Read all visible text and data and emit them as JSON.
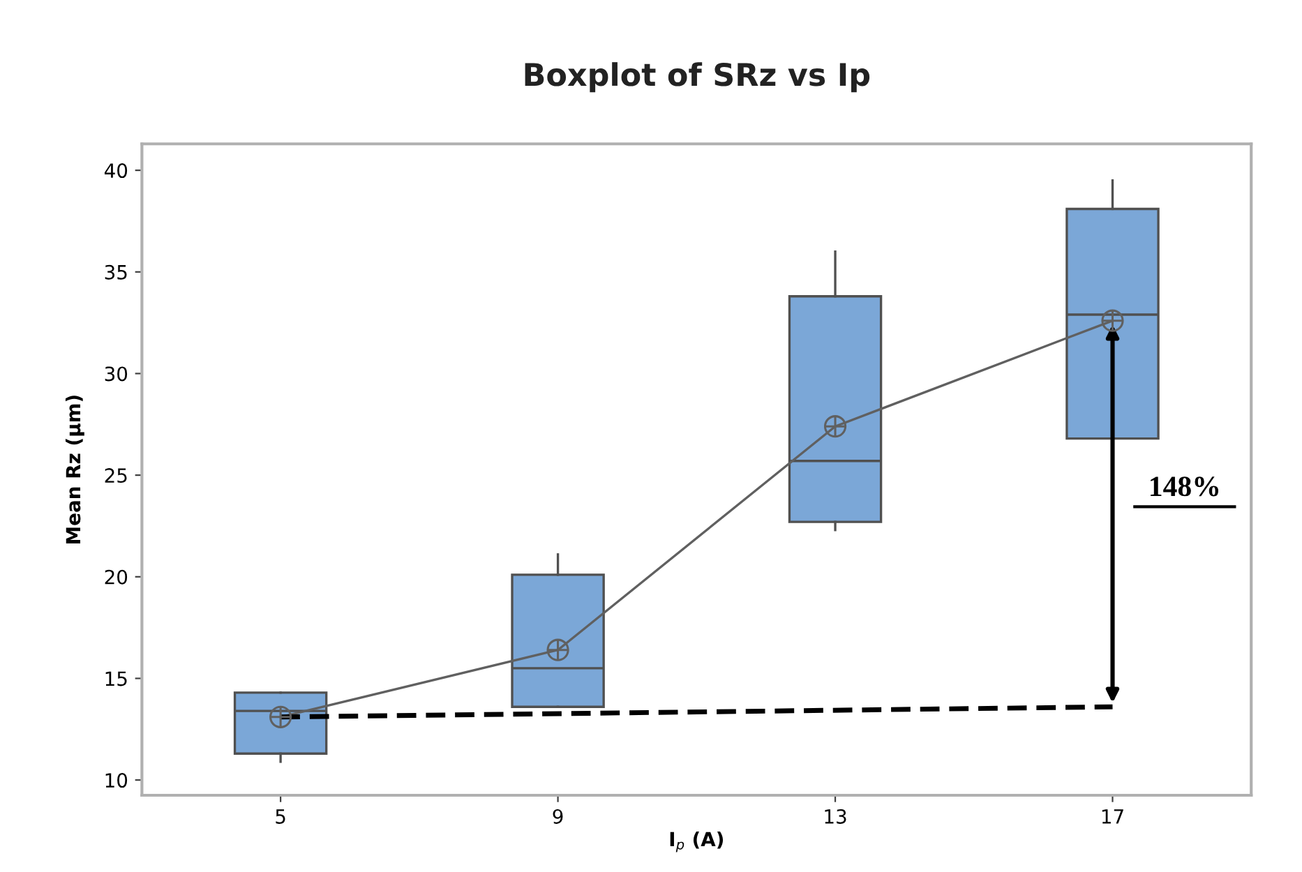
{
  "chart_data": {
    "type": "box",
    "title": "Boxplot of SRz vs Ip",
    "xlabel": "I$_{p}$ (A)",
    "ylabel": "Mean Rz (µm)",
    "categories": [
      "5",
      "9",
      "13",
      "17"
    ],
    "boxes": [
      {
        "low": 10.9,
        "q1": 11.3,
        "median": 13.4,
        "q3": 14.3,
        "high": 14.3
      },
      {
        "low": 13.6,
        "q1": 13.6,
        "median": 15.5,
        "q3": 20.1,
        "high": 21.1
      },
      {
        "low": 22.3,
        "q1": 22.7,
        "median": 25.7,
        "q3": 33.8,
        "high": 36.0
      },
      {
        "low": 25.2,
        "q1": 26.8,
        "median": 32.9,
        "q3": 38.1,
        "high": 39.5
      }
    ],
    "color": "#7ba7d7",
    "series": [
      {
        "type": "line",
        "color": "#606060",
        "values": [
          13.1,
          16.4,
          27.4,
          32.6
        ],
        "marker": "circle",
        "line_style": "solid"
      },
      {
        "type": "line",
        "color": "#000000",
        "x": [
          "5",
          "17"
        ],
        "values": [
          13.1,
          13.6
        ],
        "line_style": "dashed"
      }
    ],
    "annotations": [
      "148%"
    ],
    "ylim": [
      9.25,
      41.3
    ],
    "yticks": [
      10,
      15,
      20,
      25,
      30,
      35,
      40
    ],
    "grid": false,
    "legend": false
  }
}
